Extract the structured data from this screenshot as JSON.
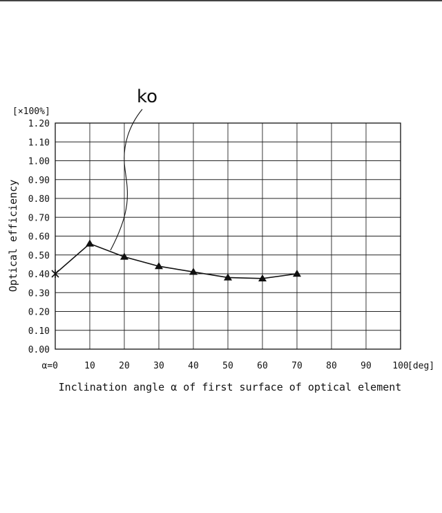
{
  "chart_data": {
    "type": "line",
    "x": [
      0,
      10,
      20,
      30,
      40,
      50,
      60,
      70
    ],
    "series": [
      {
        "values": [
          0.4,
          0.56,
          0.49,
          0.44,
          0.41,
          0.38,
          0.375,
          0.4
        ],
        "markers": [
          "x",
          "triangle",
          "triangle",
          "triangle",
          "triangle",
          "triangle",
          "triangle",
          "triangle"
        ]
      }
    ],
    "xlim": [
      0,
      100
    ],
    "ylim": [
      0,
      1.2
    ],
    "x_tick_labels": [
      "α=0",
      "10",
      "20",
      "30",
      "40",
      "50",
      "60",
      "70",
      "80",
      "90",
      "100"
    ],
    "y_tick_labels": [
      "0.00",
      "0.10",
      "0.20",
      "0.30",
      "0.40",
      "0.50",
      "0.60",
      "0.70",
      "0.80",
      "0.90",
      "1.00",
      "1.10",
      "1.20"
    ],
    "x_unit": "[deg]",
    "y_unit": "[×100%]",
    "xlabel": "Inclination angle α of first surface of optical element",
    "ylabel": "Optical efficiency",
    "annotation": "ko",
    "grid": true,
    "colors": {
      "line": "#111111",
      "grid": "#222222"
    }
  }
}
